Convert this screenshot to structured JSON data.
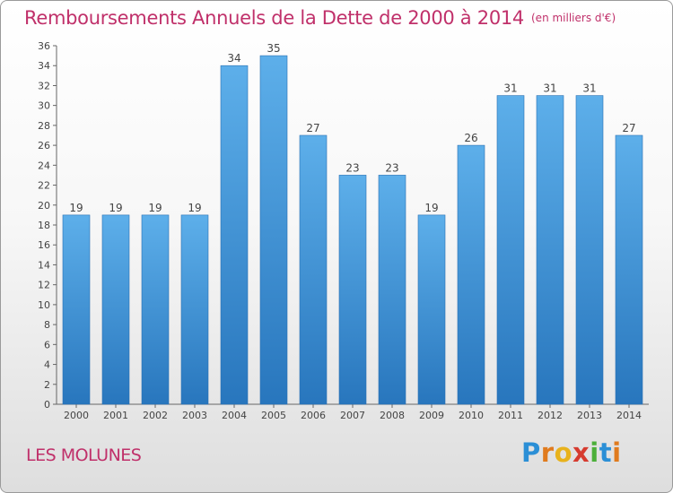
{
  "chart_data": {
    "type": "bar",
    "title": "Remboursements Annuels de la Dette de 2000 à 2014",
    "subtitle": "(en milliers d'€)",
    "categories": [
      "2000",
      "2001",
      "2002",
      "2003",
      "2004",
      "2005",
      "2006",
      "2007",
      "2008",
      "2009",
      "2010",
      "2011",
      "2012",
      "2013",
      "2014"
    ],
    "values": [
      19,
      19,
      19,
      19,
      34,
      35,
      27,
      23,
      23,
      19,
      26,
      31,
      31,
      31,
      27
    ],
    "ylim": [
      0,
      36
    ],
    "ytick_step": 2,
    "grid": false,
    "bar_color": "#4a9de0",
    "bar_color_dark": "#2a7bc4"
  },
  "footer": {
    "commune": "LES MOLUNES",
    "brand_letters": [
      {
        "ch": "P",
        "color": "#2b8fd6"
      },
      {
        "ch": "r",
        "color": "#e07b1e"
      },
      {
        "ch": "o",
        "color": "#e8b21c"
      },
      {
        "ch": "x",
        "color": "#d63b2f"
      },
      {
        "ch": "i",
        "color": "#4caf3a"
      },
      {
        "ch": "t",
        "color": "#2b8fd6"
      },
      {
        "ch": "i",
        "color": "#e07b1e"
      }
    ]
  }
}
